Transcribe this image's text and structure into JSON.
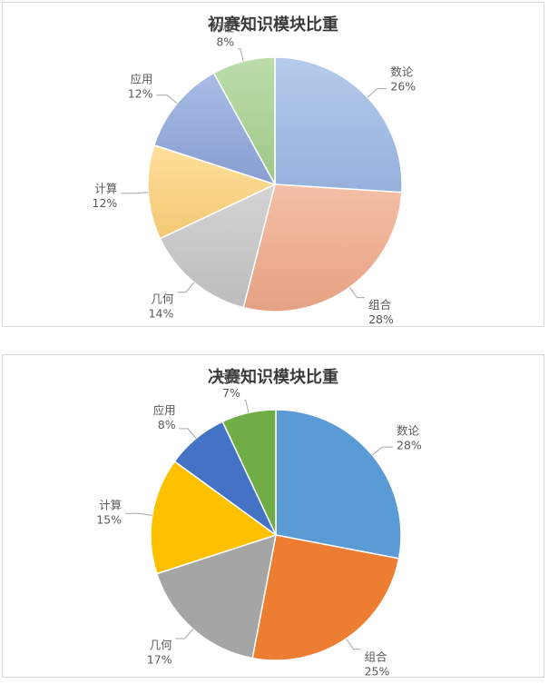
{
  "chart_data": [
    {
      "type": "pie",
      "title": "初赛知识模块比重",
      "style": "gradient",
      "categories": [
        "数论",
        "组合",
        "几何",
        "计算",
        "应用",
        "行程"
      ],
      "values": [
        26,
        28,
        14,
        12,
        12,
        8
      ],
      "labels": [
        "26%",
        "28%",
        "14%",
        "12%",
        "12%",
        "8%"
      ],
      "colors": [
        "#9db9e6",
        "#f2a98a",
        "#c6c6c6",
        "#ffd47a",
        "#8ea6dc",
        "#a6d18d"
      ]
    },
    {
      "type": "pie",
      "title": "决赛知识模块比重",
      "style": "flat",
      "categories": [
        "数论",
        "组合",
        "几何",
        "计算",
        "应用",
        "行程"
      ],
      "values": [
        28,
        25,
        17,
        15,
        8,
        7
      ],
      "labels": [
        "28%",
        "25%",
        "17%",
        "15%",
        "8%",
        "7%"
      ],
      "colors": [
        "#5b9bd5",
        "#ed7d31",
        "#a5a5a5",
        "#ffc000",
        "#4472c4",
        "#70ad47"
      ]
    }
  ]
}
